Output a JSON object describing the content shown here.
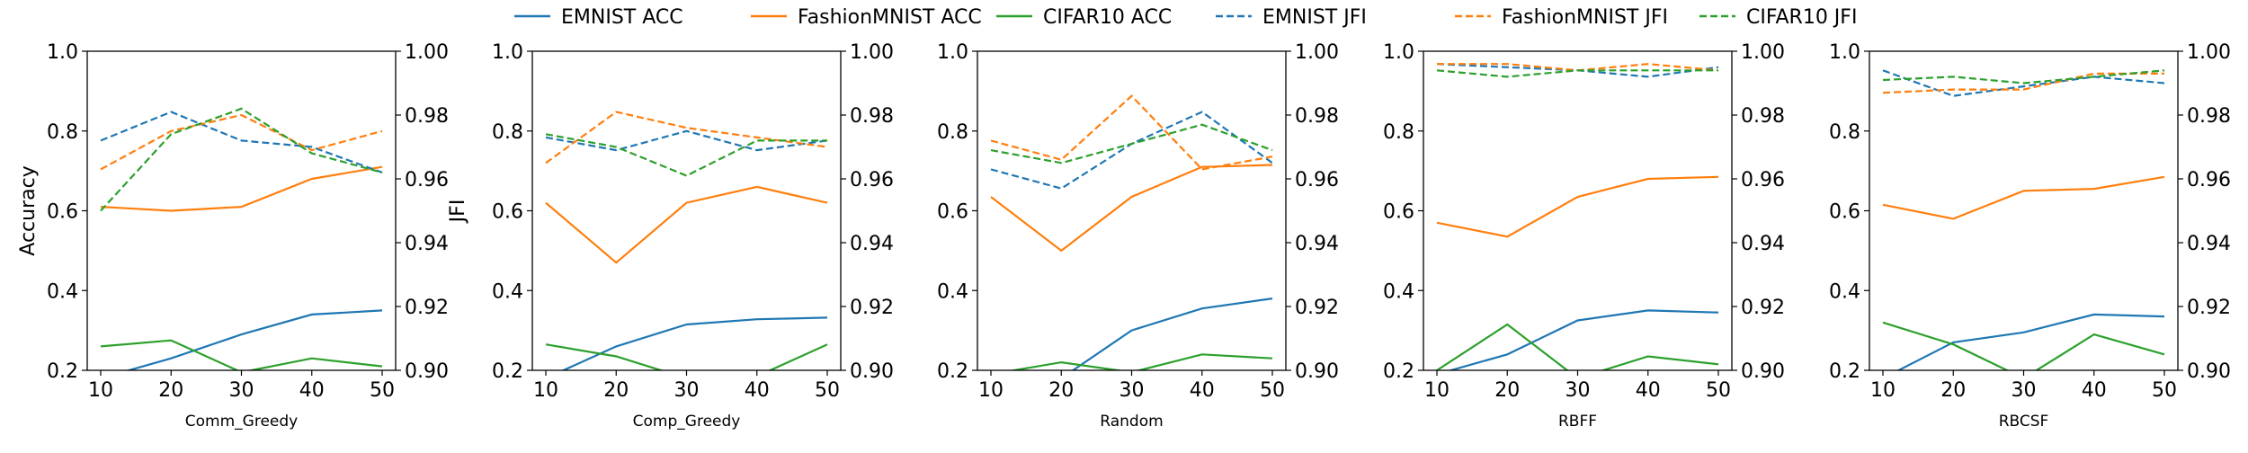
{
  "chart_data": {
    "type": "line",
    "left_ylabel": "Accuracy",
    "right_ylabel": "JFI",
    "left_ylim": [
      0.2,
      1.0
    ],
    "right_ylim": [
      0.9,
      1.0
    ],
    "left_yticks": [
      "0.2",
      "0.4",
      "0.6",
      "0.8",
      "1.0"
    ],
    "right_yticks": [
      "0.90",
      "0.92",
      "0.94",
      "0.96",
      "0.98",
      "1.00"
    ],
    "x": [
      10,
      20,
      30,
      40,
      50
    ],
    "xticks": [
      "10",
      "20",
      "30",
      "40",
      "50"
    ],
    "grid": false,
    "legend_placement": "top-center",
    "legend": [
      {
        "name": "EMNIST ACC",
        "color": "#1f77b4",
        "style": "solid"
      },
      {
        "name": "FashionMNIST ACC",
        "color": "#ff7f0e",
        "style": "solid"
      },
      {
        "name": "CIFAR10 ACC",
        "color": "#2ca02c",
        "style": "solid"
      },
      {
        "name": "EMNIST JFI",
        "color": "#1f77b4",
        "style": "dashed"
      },
      {
        "name": "FashionMNIST JFI",
        "color": "#ff7f0e",
        "style": "dashed"
      },
      {
        "name": "CIFAR10 JFI",
        "color": "#2ca02c",
        "style": "dashed"
      }
    ],
    "subplots": [
      {
        "xlabel": "Comm_Greedy",
        "acc": {
          "EMNIST": [
            0.18,
            0.23,
            0.29,
            0.34,
            0.35
          ],
          "FashionMNIST": [
            0.61,
            0.6,
            0.61,
            0.68,
            0.71
          ],
          "CIFAR10": [
            0.26,
            0.275,
            0.195,
            0.23,
            0.21
          ]
        },
        "jfi": {
          "EMNIST": [
            0.972,
            0.981,
            0.972,
            0.97,
            0.962
          ],
          "FashionMNIST": [
            0.963,
            0.975,
            0.98,
            0.969,
            0.975
          ],
          "CIFAR10": [
            0.95,
            0.974,
            0.982,
            0.968,
            0.962
          ]
        }
      },
      {
        "xlabel": "Comp_Greedy",
        "acc": {
          "EMNIST": [
            0.18,
            0.26,
            0.315,
            0.328,
            0.332
          ],
          "FashionMNIST": [
            0.62,
            0.47,
            0.62,
            0.66,
            0.62
          ],
          "CIFAR10": [
            0.265,
            0.235,
            0.18,
            0.185,
            0.265
          ]
        },
        "jfi": {
          "EMNIST": [
            0.973,
            0.969,
            0.975,
            0.969,
            0.972
          ],
          "FashionMNIST": [
            0.965,
            0.981,
            0.976,
            0.973,
            0.97
          ],
          "CIFAR10": [
            0.974,
            0.97,
            0.961,
            0.972,
            0.972
          ]
        }
      },
      {
        "xlabel": "Random",
        "acc": {
          "EMNIST": [
            0.17,
            0.18,
            0.3,
            0.355,
            0.38
          ],
          "FashionMNIST": [
            0.635,
            0.5,
            0.635,
            0.71,
            0.715
          ],
          "CIFAR10": [
            0.19,
            0.22,
            0.195,
            0.24,
            0.23
          ]
        },
        "jfi": {
          "EMNIST": [
            0.963,
            0.957,
            0.971,
            0.981,
            0.965
          ],
          "FashionMNIST": [
            0.972,
            0.966,
            0.986,
            0.963,
            0.967
          ],
          "CIFAR10": [
            0.969,
            0.965,
            0.971,
            0.977,
            0.969
          ]
        }
      },
      {
        "xlabel": "RBFF",
        "acc": {
          "EMNIST": [
            0.19,
            0.24,
            0.325,
            0.35,
            0.345
          ],
          "FashionMNIST": [
            0.57,
            0.535,
            0.635,
            0.68,
            0.685
          ],
          "CIFAR10": [
            0.2,
            0.315,
            0.18,
            0.235,
            0.215
          ]
        },
        "jfi": {
          "EMNIST": [
            0.996,
            0.995,
            0.994,
            0.992,
            0.995
          ],
          "FashionMNIST": [
            0.996,
            0.996,
            0.994,
            0.996,
            0.994
          ],
          "CIFAR10": [
            0.994,
            0.992,
            0.994,
            0.994,
            0.994
          ]
        }
      },
      {
        "xlabel": "RBCSF",
        "acc": {
          "EMNIST": [
            0.18,
            0.27,
            0.295,
            0.34,
            0.335
          ],
          "FashionMNIST": [
            0.615,
            0.58,
            0.65,
            0.655,
            0.685
          ],
          "CIFAR10": [
            0.32,
            0.265,
            0.18,
            0.29,
            0.24
          ]
        },
        "jfi": {
          "EMNIST": [
            0.994,
            0.986,
            0.989,
            0.992,
            0.99
          ],
          "FashionMNIST": [
            0.987,
            0.988,
            0.988,
            0.993,
            0.993
          ],
          "CIFAR10": [
            0.991,
            0.992,
            0.99,
            0.992,
            0.994
          ]
        }
      }
    ]
  }
}
